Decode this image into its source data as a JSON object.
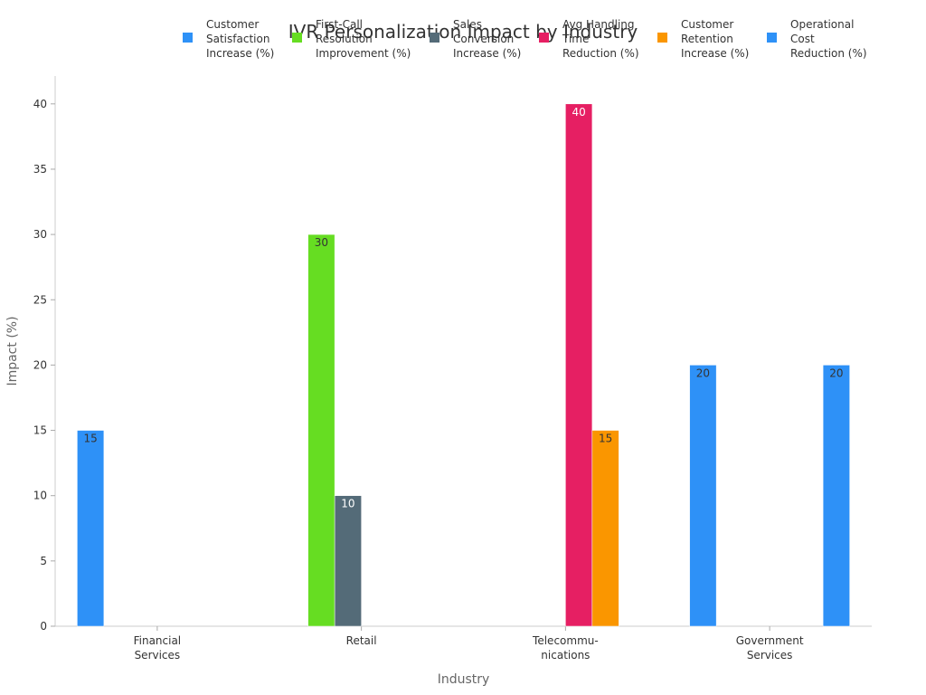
{
  "chart_data": {
    "type": "bar",
    "title": "IVR Personalization Impact by Industry",
    "xlabel": "Industry",
    "ylabel": "Impact (%)",
    "ylim": [
      0,
      42
    ],
    "yticks": [
      0,
      5,
      10,
      15,
      20,
      25,
      30,
      35,
      40
    ],
    "grid": false,
    "legend_position": "top",
    "categories": [
      [
        "Financial",
        "Services"
      ],
      [
        "Retail"
      ],
      [
        "Telecommu-",
        "nications"
      ],
      [
        "Government",
        "Services"
      ]
    ],
    "series": [
      {
        "name": [
          "Customer",
          "Satisfaction",
          "Increase (%)"
        ],
        "color": "#2e91f7",
        "values": [
          15,
          null,
          null,
          20
        ]
      },
      {
        "name": [
          "First-Call",
          "Resolution",
          "Improvement (%)"
        ],
        "color": "#66dd22",
        "values": [
          null,
          30,
          null,
          null
        ]
      },
      {
        "name": [
          "Sales",
          "Conversion",
          "Increase (%)"
        ],
        "color": "#546b78",
        "values": [
          null,
          10,
          null,
          null
        ]
      },
      {
        "name": [
          "Avg Handling",
          "Time",
          "Reduction (%)"
        ],
        "color": "#e61f63",
        "values": [
          null,
          null,
          40,
          null
        ]
      },
      {
        "name": [
          "Customer",
          "Retention",
          "Increase (%)"
        ],
        "color": "#fa9600",
        "values": [
          null,
          null,
          15,
          null
        ]
      },
      {
        "name": [
          "Operational",
          "Cost",
          "Reduction (%)"
        ],
        "color": "#2e91f7",
        "values": [
          null,
          null,
          null,
          20
        ]
      }
    ],
    "data_label_colors": [
      "#333333",
      "#333333",
      "#ffffff",
      "#ffffff",
      "#333333",
      "#333333"
    ]
  }
}
